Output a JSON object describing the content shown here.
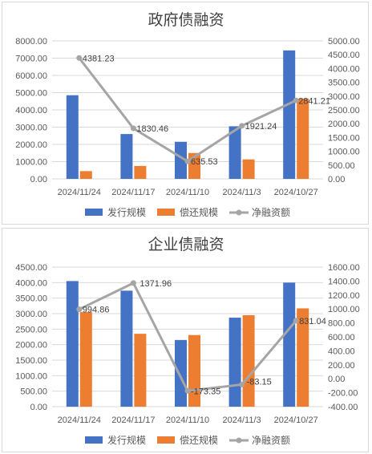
{
  "chart_data": [
    {
      "type": "bar",
      "title": "政府债融资",
      "categories": [
        "2024/11/24",
        "2024/11/17",
        "2024/11/10",
        "2024/11/3",
        "2024/10/27"
      ],
      "left_ticks": [
        "0.00",
        "1000.00",
        "2000.00",
        "3000.00",
        "4000.00",
        "5000.00",
        "6000.00",
        "7000.00",
        "8000.00"
      ],
      "right_ticks": [
        "0.00",
        "500.00",
        "1000.00",
        "1500.00",
        "2000.00",
        "2500.00",
        "3000.00",
        "3500.00",
        "4000.00",
        "4500.00",
        "5000.00"
      ],
      "ylim_left": [
        0,
        8000
      ],
      "ylim_right": [
        0,
        5000
      ],
      "series": [
        {
          "name": "发行规模",
          "type": "bar",
          "axis": "left",
          "color": "#4472C4",
          "values": [
            4850,
            2600,
            2150,
            3050,
            7450
          ]
        },
        {
          "name": "偿还规模",
          "type": "bar",
          "axis": "left",
          "color": "#ED7D31",
          "values": [
            450,
            750,
            1500,
            1130,
            4650
          ]
        },
        {
          "name": "净融资额",
          "type": "line",
          "axis": "right",
          "color": "#A5A5A5",
          "values": [
            4381.23,
            1830.46,
            635.53,
            1921.24,
            2841.21
          ]
        }
      ],
      "data_labels": [
        "4381.23",
        "1830.46",
        "635.53",
        "1921.24",
        "2841.21"
      ],
      "grid": true,
      "legend_position": "bottom"
    },
    {
      "type": "bar",
      "title": "企业债融资",
      "categories": [
        "2024/11/24",
        "2024/11/17",
        "2024/11/10",
        "2024/11/3",
        "2024/10/27"
      ],
      "left_ticks": [
        "0.00",
        "500.00",
        "1000.00",
        "1500.00",
        "2000.00",
        "2500.00",
        "3000.00",
        "3500.00",
        "4000.00",
        "4500.00"
      ],
      "right_ticks": [
        "-400.00",
        "-200.00",
        "0.00",
        "200.00",
        "400.00",
        "600.00",
        "800.00",
        "1000.00",
        "1200.00",
        "1400.00",
        "1600.00"
      ],
      "ylim_left": [
        0,
        4500
      ],
      "ylim_right": [
        -400,
        1600
      ],
      "series": [
        {
          "name": "发行规模",
          "type": "bar",
          "axis": "left",
          "color": "#4472C4",
          "values": [
            4050,
            3740,
            2150,
            2870,
            4000
          ]
        },
        {
          "name": "偿还规模",
          "type": "bar",
          "axis": "left",
          "color": "#ED7D31",
          "values": [
            3050,
            2350,
            2310,
            2950,
            3170
          ]
        },
        {
          "name": "净融资额",
          "type": "line",
          "axis": "right",
          "color": "#A5A5A5",
          "values": [
            994.86,
            1371.96,
            -173.35,
            -83.15,
            831.04
          ]
        }
      ],
      "data_labels": [
        "994.86",
        "1371.96",
        "-173.35",
        "-83.15",
        "831.04"
      ],
      "grid": true,
      "legend_position": "bottom"
    }
  ]
}
